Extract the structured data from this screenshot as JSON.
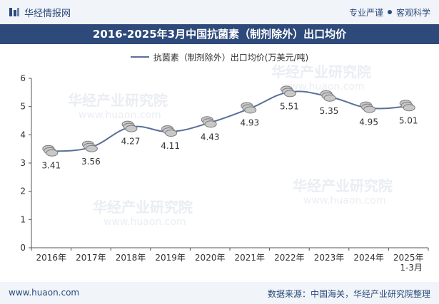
{
  "header": {
    "brand": "华经情报网",
    "tag_left": "专业严谨",
    "tag_right": "客观科学"
  },
  "title": "2016-2025年3月中国抗菌素（制剂除外）出口均价",
  "footer": {
    "url": "www.huaon.com",
    "source": "数据来源：中国海关，华经产业研究院整理"
  },
  "watermark": {
    "name": "华经产业研究院",
    "url": "www.huaon.com"
  },
  "colors": {
    "header_bg": "#f1f4f9",
    "title_bg": "#2e4a7a",
    "line": "#5a6f9a",
    "marker": "#a9a9a9",
    "text": "#333333"
  },
  "chart_data": {
    "type": "line",
    "title": "2016-2025年3月中国抗菌素（制剂除外）出口均价",
    "categories": [
      "2016年",
      "2017年",
      "2018年",
      "2019年",
      "2020年",
      "2021年",
      "2022年",
      "2023年",
      "2024年",
      "2025年\n1-3月"
    ],
    "series": [
      {
        "name": "抗菌素（制剂除外）出口均价(万美元/吨)",
        "values": [
          3.41,
          3.56,
          4.27,
          4.11,
          4.43,
          4.93,
          5.51,
          5.35,
          4.95,
          5.01
        ]
      }
    ],
    "ylim": [
      0,
      6
    ],
    "yticks": [
      0,
      1,
      2,
      3,
      4,
      5,
      6
    ],
    "xlabel": "",
    "ylabel": "",
    "grid": false,
    "legend": "top-center"
  }
}
